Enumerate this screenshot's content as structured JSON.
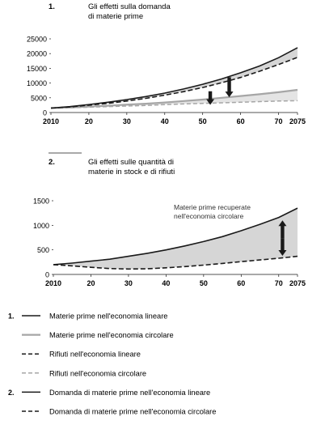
{
  "chart_data": [
    {
      "type": "area",
      "number": "1.",
      "title_lines": [
        "Gli effetti sulla domanda",
        "di materie prime"
      ],
      "x": [
        2010,
        2015,
        2020,
        2025,
        2030,
        2035,
        2040,
        2045,
        2050,
        2055,
        2060,
        2065,
        2070,
        2075
      ],
      "xticks": [
        2010,
        2020,
        2030,
        2040,
        2050,
        2060,
        2070,
        2075
      ],
      "xtick_labels": [
        "2010",
        "20",
        "30",
        "40",
        "50",
        "60",
        "70",
        "2075"
      ],
      "yticks": [
        0,
        5000,
        10000,
        15000,
        20000,
        25000
      ],
      "ytick_labels": [
        "0",
        "5000",
        "10000",
        "15000",
        "20000",
        "25000"
      ],
      "ylim": [
        0,
        25000
      ],
      "series": [
        {
          "key": "materie_prime_lineare",
          "values": [
            1500,
            2000,
            2700,
            3500,
            4400,
            5400,
            6600,
            8000,
            9600,
            11400,
            13500,
            15800,
            18600,
            22000
          ]
        },
        {
          "key": "materie_prime_circolare",
          "values": [
            1500,
            1700,
            2000,
            2300,
            2700,
            3000,
            3400,
            3900,
            4400,
            5000,
            5600,
            6200,
            6900,
            7700
          ]
        },
        {
          "key": "rifiuti_lineare",
          "values": [
            1500,
            1900,
            2500,
            3100,
            3900,
            4800,
            5900,
            7100,
            8500,
            10100,
            11900,
            14000,
            16300,
            18700
          ]
        },
        {
          "key": "rifiuti_circolare",
          "values": [
            1500,
            1600,
            1800,
            2000,
            2200,
            2400,
            2700,
            2900,
            3100,
            3300,
            3500,
            3700,
            3900,
            4000
          ]
        }
      ]
    },
    {
      "type": "area",
      "number": "2.",
      "title_lines": [
        "Gli effetti sulle quantità di",
        "materie in stock e di rifiuti"
      ],
      "annotation_lines": [
        "Materie prime recuperate",
        "nell'economia circolare"
      ],
      "x": [
        2010,
        2015,
        2020,
        2025,
        2030,
        2035,
        2040,
        2045,
        2050,
        2055,
        2060,
        2065,
        2070,
        2075
      ],
      "xticks": [
        2010,
        2020,
        2030,
        2040,
        2050,
        2060,
        2070,
        2075
      ],
      "xtick_labels": [
        "2010",
        "20",
        "30",
        "40",
        "50",
        "60",
        "70",
        "2075"
      ],
      "yticks": [
        0,
        500,
        1000,
        1500
      ],
      "ytick_labels": [
        "0",
        "500",
        "1000",
        "1500"
      ],
      "ylim": [
        0,
        1500
      ],
      "series": [
        {
          "key": "domanda_lineare",
          "values": [
            200,
            230,
            270,
            310,
            370,
            430,
            500,
            580,
            670,
            770,
            890,
            1020,
            1160,
            1350
          ]
        },
        {
          "key": "domanda_circolare",
          "values": [
            200,
            175,
            145,
            120,
            110,
            115,
            135,
            160,
            190,
            225,
            260,
            295,
            330,
            370
          ]
        }
      ]
    }
  ],
  "legend": [
    {
      "group": "1.",
      "style": "solid-black",
      "label": "Materie prime nell'economia lineare"
    },
    {
      "group": "",
      "style": "solid-gray",
      "label": "Materie prime nell'economia circolare"
    },
    {
      "group": "",
      "style": "dashed-black",
      "label": "Rifiuti nell'economia lineare"
    },
    {
      "group": "",
      "style": "dashed-gray",
      "label": "Rifiuti nell'economia circolare"
    },
    {
      "group": "2.",
      "style": "solid-black",
      "label": "Domanda di materie prime nell'economia lineare"
    },
    {
      "group": "",
      "style": "dashed-black",
      "label": "Domanda di materie prime nell'economia circolare"
    }
  ],
  "colors": {
    "black": "#1a1a1a",
    "gray_line": "#a6a6a6",
    "band_fill": "#d6d6d6",
    "band_fill_2": "#e4e4e4"
  }
}
